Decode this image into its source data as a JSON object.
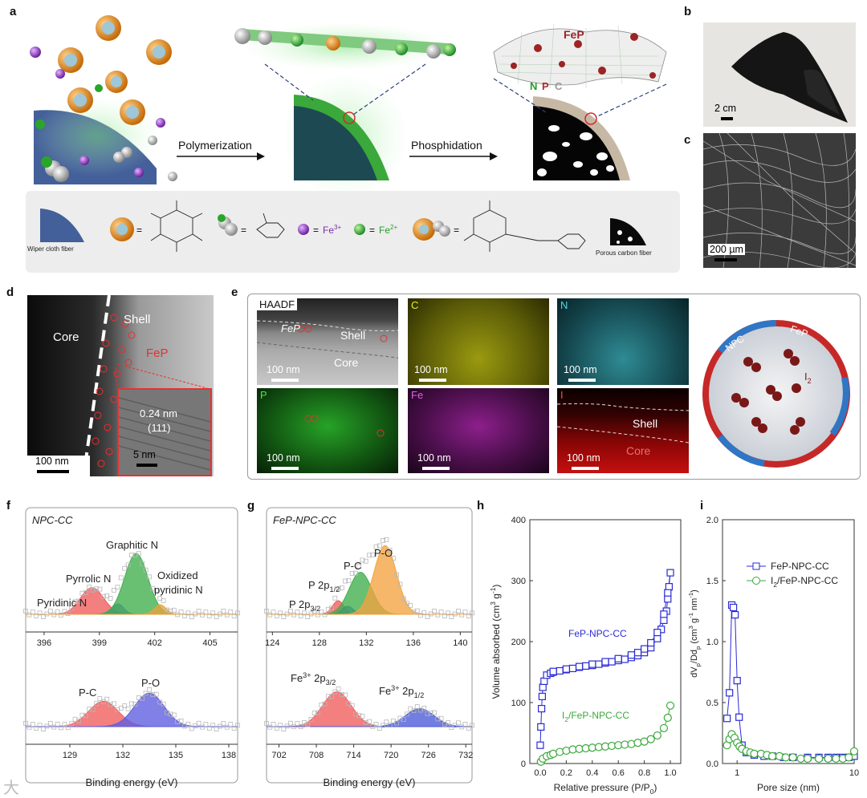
{
  "panels": {
    "a": "a",
    "b": "b",
    "c": "c",
    "d": "d",
    "e": "e",
    "f": "f",
    "g": "g",
    "h": "h",
    "i": "i"
  },
  "panel_a": {
    "arrow1": "Polymerization",
    "arrow2": "Phosphidation",
    "fep": "FeP",
    "npc": {
      "n": "N",
      "p": "P",
      "c": "C"
    },
    "legend": {
      "wiper": "Wiper cloth fiber",
      "porous": "Porous carbon fiber",
      "eq": "=",
      "fe3": "Fe",
      "fe3_sup": "3+",
      "fe2": "Fe",
      "fe2_sup": "2+"
    }
  },
  "panel_b": {
    "scale": "2 cm"
  },
  "panel_c": {
    "scale": "200 µm"
  },
  "panel_d": {
    "core": "Core",
    "shell": "Shell",
    "fep": "FeP",
    "d_spacing": "0.24 nm",
    "plane": "(111)",
    "scale": "100 nm",
    "inset_scale": "5 nm"
  },
  "panel_e": {
    "tiles": [
      {
        "title": "HAADF",
        "scale": "100 nm"
      },
      {
        "title": "C",
        "scale": "100 nm"
      },
      {
        "title": "N",
        "scale": "100 nm"
      },
      {
        "title": "P",
        "scale": "100 nm"
      },
      {
        "title": "Fe",
        "scale": "100 nm"
      },
      {
        "title": "I",
        "scale": "100 nm"
      }
    ],
    "haadf_fep": "FeP",
    "haadf_shell": "Shell",
    "haadf_core": "Core",
    "i_shell": "Shell",
    "i_core": "Core",
    "ring_npc": "NPC",
    "ring_fep": "FeP",
    "i2": "I",
    "i2_sub": "2"
  },
  "chart_data": [
    {
      "panel": "f",
      "type": "line",
      "title": "NPC-CC",
      "xlabel": "Binding energy (eV)",
      "subplots": [
        {
          "xlim": [
            395,
            406.5
          ],
          "ticks": [
            396,
            399,
            402,
            405
          ],
          "peaks": [
            {
              "name": "Pyridinic N",
              "center": 398.6,
              "height": 0.33,
              "color": "#ef5b5b"
            },
            {
              "name": "Pyrrolic N",
              "center": 400.0,
              "height": 0.13,
              "color": "#5b6bd0"
            },
            {
              "name": "Graphitic N",
              "center": 401.0,
              "height": 0.75,
              "color": "#3fae4b"
            },
            {
              "name": "Oxidized pyridinic N",
              "center": 402.3,
              "height": 0.12,
              "color": "#e9a33c"
            }
          ]
        },
        {
          "xlim": [
            126.5,
            138.5
          ],
          "ticks": [
            129,
            132,
            135,
            138
          ],
          "peaks": [
            {
              "name": "P-C",
              "center": 130.9,
              "height": 0.62,
              "color": "#ef5b5b"
            },
            {
              "name": "P-O",
              "center": 133.5,
              "height": 0.82,
              "color": "#5c5ce0"
            }
          ]
        }
      ]
    },
    {
      "panel": "g",
      "type": "line",
      "title": "FeP-NPC-CC",
      "xlabel": "Binding energy (eV)",
      "subplots": [
        {
          "xlim": [
            123.5,
            141
          ],
          "ticks": [
            124,
            128,
            132,
            136,
            140
          ],
          "peaks": [
            {
              "name": "P 2p3/2",
              "center": 129.6,
              "height": 0.17,
              "color": "#ef5b5b"
            },
            {
              "name": "P 2p1/2",
              "center": 130.4,
              "height": 0.1,
              "color": "#4a5ad8"
            },
            {
              "name": "P-C",
              "center": 131.5,
              "height": 0.52,
              "color": "#3fae4b"
            },
            {
              "name": "P-O",
              "center": 133.6,
              "height": 0.85,
              "color": "#f3a340"
            }
          ]
        },
        {
          "xlim": [
            700,
            733
          ],
          "ticks": [
            702,
            708,
            714,
            720,
            726,
            732
          ],
          "peaks": [
            {
              "name": "Fe3+ 2p3/2",
              "center": 711.3,
              "height": 0.85,
              "color": "#ef5b5b"
            },
            {
              "name": "Fe3+ 2p1/2",
              "center": 724.6,
              "height": 0.44,
              "color": "#4a5ad8"
            }
          ]
        }
      ]
    },
    {
      "panel": "h",
      "type": "scatter",
      "xlabel": "Relative pressure (P/P",
      "xlabel_sub": "0",
      "xlabel_end": ")",
      "ylabel": "Volume absorbed (cm",
      "ylabel_sup": "3",
      "ylabel_end": " g",
      "ylabel_sup2": "-1",
      "ylabel_close": ")",
      "xlim": [
        -0.08,
        1.08
      ],
      "ylim": [
        0,
        400
      ],
      "xticks": [
        0.0,
        0.2,
        0.4,
        0.6,
        0.8,
        1.0
      ],
      "yticks": [
        0,
        100,
        200,
        300,
        400
      ],
      "series": [
        {
          "name": "FeP-NPC-CC",
          "color": "#2b2bd6",
          "marker": "square",
          "x": [
            0.0,
            0.005,
            0.01,
            0.015,
            0.02,
            0.03,
            0.05,
            0.08,
            0.1,
            0.15,
            0.2,
            0.25,
            0.3,
            0.35,
            0.4,
            0.45,
            0.5,
            0.55,
            0.6,
            0.65,
            0.7,
            0.75,
            0.8,
            0.85,
            0.9,
            0.93,
            0.95,
            0.97,
            0.98,
            0.99,
            1.0,
            0.98,
            0.95,
            0.9,
            0.85,
            0.8,
            0.75,
            0.7,
            0.6,
            0.5,
            0.4,
            0.3,
            0.2,
            0.1
          ],
          "y": [
            30,
            60,
            90,
            110,
            125,
            135,
            145,
            148,
            150,
            152,
            154,
            156,
            158,
            160,
            161,
            163,
            165,
            167,
            169,
            171,
            174,
            177,
            182,
            190,
            205,
            220,
            235,
            250,
            270,
            290,
            313,
            280,
            245,
            215,
            198,
            188,
            182,
            178,
            172,
            167,
            163,
            159,
            155,
            151
          ]
        },
        {
          "name": "I2/FeP-NPC-CC",
          "color": "#3aa83a",
          "marker": "circle",
          "x": [
            0.005,
            0.02,
            0.05,
            0.08,
            0.1,
            0.15,
            0.2,
            0.25,
            0.3,
            0.35,
            0.4,
            0.45,
            0.5,
            0.55,
            0.6,
            0.65,
            0.7,
            0.75,
            0.8,
            0.85,
            0.9,
            0.95,
            0.98,
            1.0
          ],
          "y": [
            3,
            8,
            12,
            14,
            16,
            19,
            21,
            23,
            24,
            25,
            26,
            27,
            28,
            29,
            30,
            31,
            32,
            34,
            36,
            40,
            46,
            58,
            75,
            95
          ]
        }
      ]
    },
    {
      "panel": "i",
      "type": "scatter",
      "xlabel": "Pore size (nm)",
      "ylabel": "dV",
      "ylabel_sub1": "p",
      "ylabel_mid": "/Dd",
      "ylabel_sub2": "p",
      "ylabel_unit": " (cm",
      "ylabel_sup": "3",
      "ylabel_end": " g",
      "ylabel_sup2": "-1",
      "ylabel_nm": " nm",
      "ylabel_sup3": "-1",
      "ylabel_close": ")",
      "xscale": "log",
      "xlim": [
        0.75,
        10
      ],
      "ylim": [
        0,
        2.0
      ],
      "xticks": [
        1,
        10
      ],
      "yticks": [
        0.0,
        0.5,
        1.0,
        1.5,
        2.0
      ],
      "series": [
        {
          "name": "FeP-NPC-CC",
          "color": "#2b2bd6",
          "marker": "square",
          "x": [
            0.82,
            0.86,
            0.9,
            0.93,
            0.96,
            1.0,
            1.04,
            1.1,
            1.2,
            1.4,
            1.7,
            2.0,
            2.5,
            3.0,
            4.0,
            5.0,
            6.0,
            7.0,
            8.0,
            9.0,
            10.0
          ],
          "y": [
            0.37,
            0.58,
            1.3,
            1.28,
            1.22,
            0.68,
            0.38,
            0.15,
            0.09,
            0.07,
            0.06,
            0.06,
            0.05,
            0.05,
            0.05,
            0.05,
            0.05,
            0.05,
            0.05,
            0.05,
            0.06
          ]
        },
        {
          "name": "I2/FeP-NPC-CC",
          "color": "#3aa83a",
          "marker": "circle",
          "x": [
            0.82,
            0.86,
            0.9,
            0.95,
            1.0,
            1.05,
            1.1,
            1.2,
            1.3,
            1.4,
            1.6,
            1.8,
            2.0,
            2.3,
            2.6,
            3.0,
            3.5,
            4.0,
            5.0,
            6.0,
            7.0,
            8.0,
            9.0,
            10.0
          ],
          "y": [
            0.15,
            0.2,
            0.24,
            0.21,
            0.17,
            0.14,
            0.12,
            0.1,
            0.09,
            0.08,
            0.08,
            0.07,
            0.06,
            0.06,
            0.05,
            0.05,
            0.04,
            0.04,
            0.04,
            0.04,
            0.04,
            0.04,
            0.05,
            0.1
          ]
        }
      ]
    }
  ],
  "watermark": "大"
}
